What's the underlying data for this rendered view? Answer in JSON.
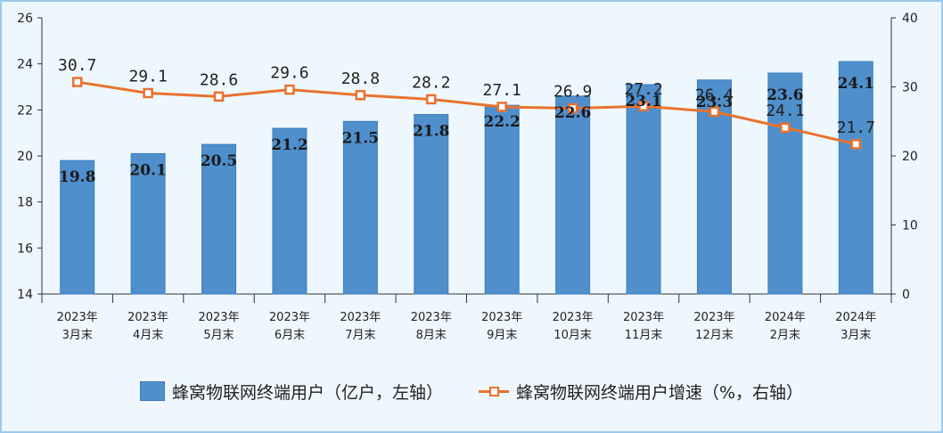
{
  "chart_data": {
    "type": "bar+line",
    "categories": [
      [
        "2023年",
        "3月末"
      ],
      [
        "2023年",
        "4月末"
      ],
      [
        "2023年",
        "5月末"
      ],
      [
        "2023年",
        "6月末"
      ],
      [
        "2023年",
        "7月末"
      ],
      [
        "2023年",
        "8月末"
      ],
      [
        "2023年",
        "9月末"
      ],
      [
        "2023年",
        "10月末"
      ],
      [
        "2023年",
        "11月末"
      ],
      [
        "2023年",
        "12月末"
      ],
      [
        "2024年",
        "2月末"
      ],
      [
        "2024年",
        "3月末"
      ]
    ],
    "series": [
      {
        "name": "蜂窝物联网终端用户（亿户，左轴）",
        "type": "bar",
        "axis": "left",
        "values": [
          19.8,
          20.1,
          20.5,
          21.2,
          21.5,
          21.8,
          22.2,
          22.6,
          23.1,
          23.3,
          23.6,
          24.1
        ],
        "labels": [
          "19.8",
          "20.1",
          "20.5",
          "21.2",
          "21.5",
          "21.8",
          "22.2",
          "22.6",
          "23.1",
          "23.3",
          "23.6",
          "24.1"
        ]
      },
      {
        "name": "蜂窝物联网终端用户增速（%，右轴）",
        "type": "line",
        "axis": "right",
        "values": [
          30.7,
          29.1,
          28.6,
          29.6,
          28.8,
          28.2,
          27.1,
          26.9,
          27.2,
          26.4,
          24.1,
          21.7
        ],
        "labels": [
          "30.7",
          "29.1",
          "28.6",
          "29.6",
          "28.8",
          "28.2",
          "27.1",
          "26.9",
          "27.2",
          "26.4",
          "24.1",
          "21.7"
        ]
      }
    ],
    "left_axis": {
      "min": 14,
      "max": 26,
      "ticks": [
        "14",
        "16",
        "18",
        "20",
        "22",
        "24",
        "26"
      ]
    },
    "right_axis": {
      "min": 0,
      "max": 40,
      "ticks": [
        "0",
        "10",
        "20",
        "30",
        "40"
      ]
    },
    "colors": {
      "bar": "#4f8fcc",
      "line": "#e8722e"
    },
    "legend_position": "bottom",
    "grid": false
  }
}
